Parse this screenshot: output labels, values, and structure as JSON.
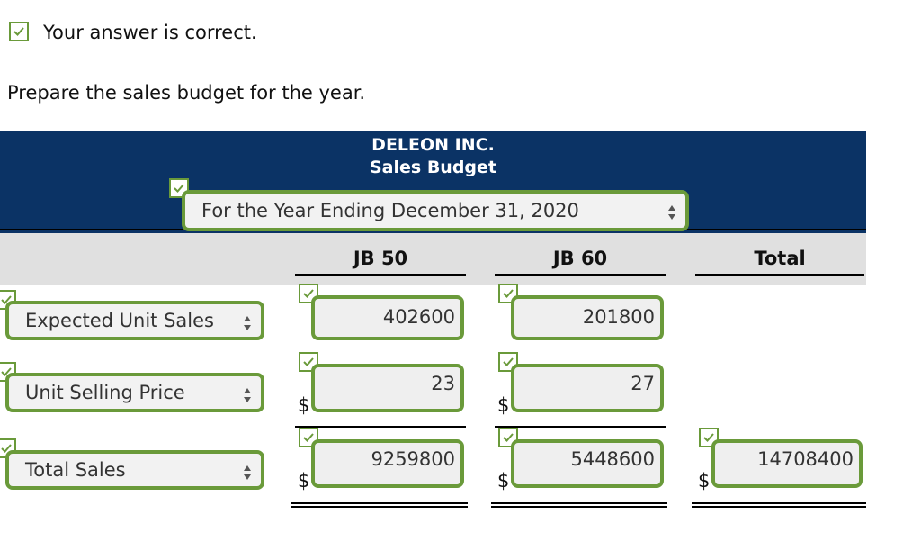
{
  "status": {
    "message": "Your answer is correct."
  },
  "instruction": "Prepare the sales budget for the year.",
  "header": {
    "company": "DELEON INC.",
    "report": "Sales Budget",
    "period_select": "For the Year Ending December 31, 2020"
  },
  "columns": [
    "JB 50",
    "JB 60",
    "Total"
  ],
  "rows": [
    {
      "label": "Expected Unit Sales",
      "values": [
        "402600",
        "201800",
        ""
      ]
    },
    {
      "label": "Unit Selling Price",
      "values": [
        "23",
        "27",
        ""
      ]
    },
    {
      "label": "Total Sales",
      "values": [
        "9259800",
        "5448600",
        "14708400"
      ]
    }
  ],
  "currency_symbol": "$",
  "colors": {
    "header_bg": "#0b3365",
    "accent_green": "#6a9a3a",
    "subheader_bg": "#e0e0e0"
  }
}
